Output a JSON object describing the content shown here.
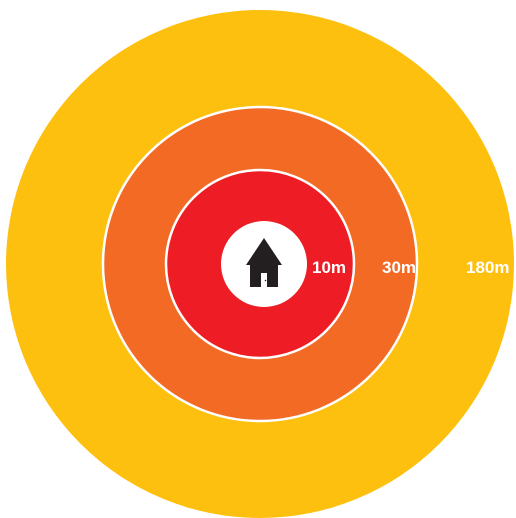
{
  "zones": [
    {
      "label": "180m",
      "color": "#FDC00F"
    },
    {
      "label": "30m",
      "color": "#F26A24"
    },
    {
      "label": "10m",
      "color": "#EE1D25"
    }
  ],
  "center": {
    "icon": "house-icon",
    "background": "#FFFFFF",
    "icon_color": "#231F20"
  },
  "ring_border_color": "#FFFFFF"
}
